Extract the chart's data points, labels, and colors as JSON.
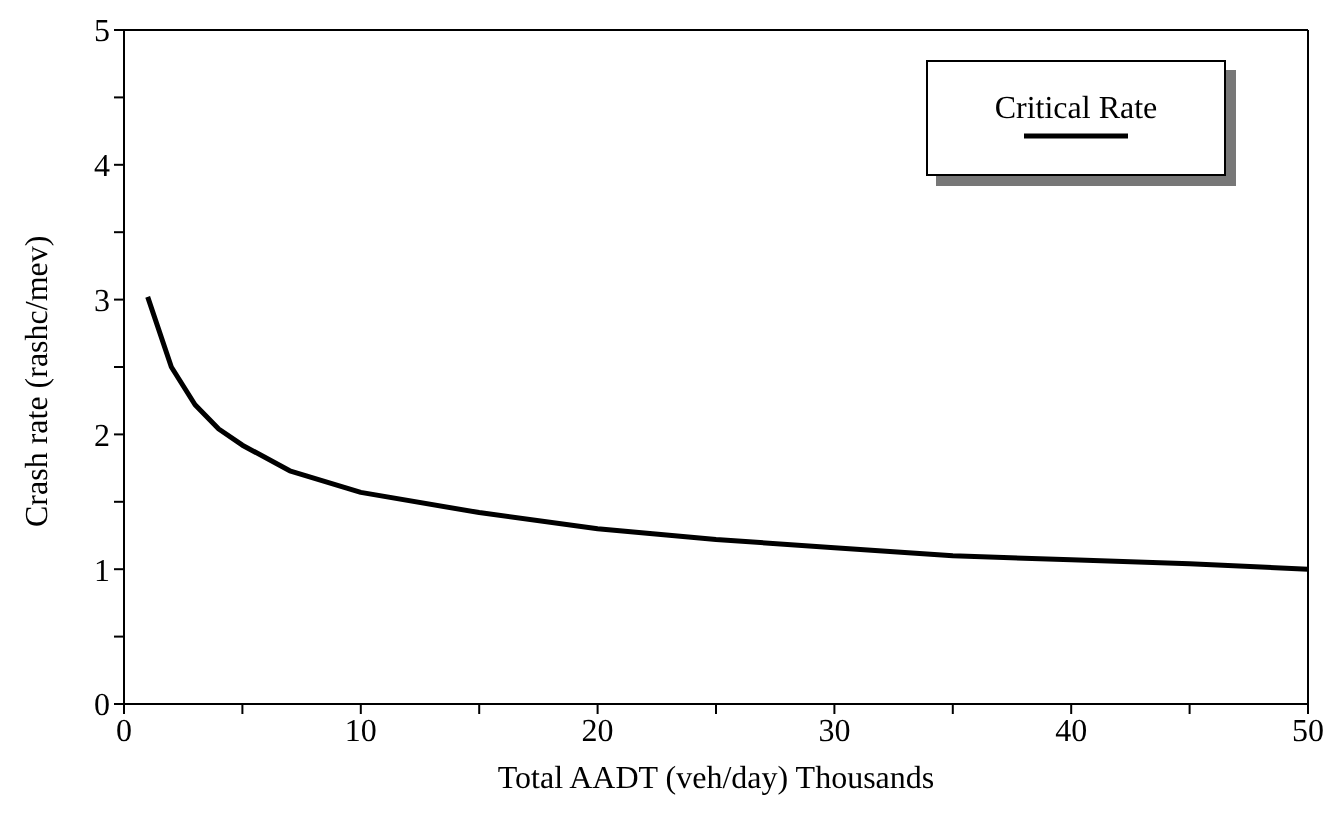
{
  "chart_data": {
    "type": "line",
    "xlabel": "Total AADT (veh/day) Thousands",
    "ylabel": "Crash  rate (rashc/mev)",
    "x": [
      1,
      2,
      3,
      4,
      5,
      7,
      10,
      15,
      20,
      25,
      30,
      35,
      40,
      45,
      50
    ],
    "series": [
      {
        "name": "Critical Rate",
        "color": "#000000",
        "values": [
          3.02,
          2.5,
          2.22,
          2.04,
          1.92,
          1.73,
          1.57,
          1.42,
          1.3,
          1.22,
          1.16,
          1.1,
          1.07,
          1.04,
          1.0
        ]
      }
    ],
    "xlim": [
      0,
      50
    ],
    "xticks": [
      0,
      {
        "value": 5,
        "label": null
      },
      10,
      {
        "value": 15,
        "label": null
      },
      20,
      {
        "value": 25,
        "label": null
      },
      30,
      {
        "value": 35,
        "label": null
      },
      40,
      {
        "value": 45,
        "label": null
      },
      50
    ],
    "ylim": [
      0,
      5
    ],
    "yticks": [
      0,
      {
        "value": 0.5,
        "label": null
      },
      1,
      {
        "value": 1.5,
        "label": null
      },
      2,
      {
        "value": 2.5,
        "label": null
      },
      3,
      {
        "value": 3.5,
        "label": null
      },
      4,
      {
        "value": 4.5,
        "label": null
      },
      5
    ],
    "legend": "top right",
    "grid": false,
    "marker": "none",
    "line_style": "solid"
  }
}
